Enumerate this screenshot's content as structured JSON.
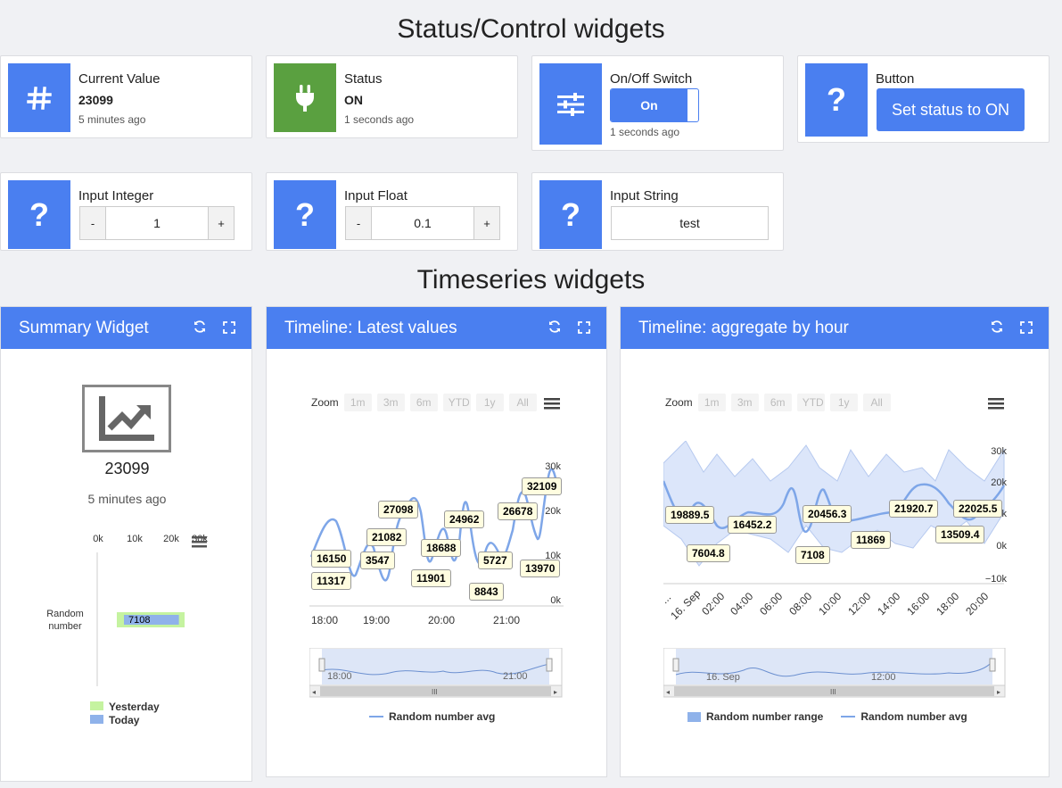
{
  "sections": {
    "status_title": "Status/Control widgets",
    "timeseries_title": "Timeseries widgets"
  },
  "current_value": {
    "label": "Current Value",
    "value": "23099",
    "time": "5 minutes ago",
    "icon": "hash-icon"
  },
  "status": {
    "label": "Status",
    "value": "ON",
    "time": "1 seconds ago",
    "icon": "plug-icon"
  },
  "switch": {
    "label": "On/Off Switch",
    "state": "On",
    "time": "1 seconds ago",
    "icon": "sliders-icon"
  },
  "button": {
    "label": "Button",
    "action": "Set status to ON",
    "icon": "question-icon"
  },
  "input_integer": {
    "label": "Input Integer",
    "minus": "-",
    "value": "1",
    "plus": "+"
  },
  "input_float": {
    "label": "Input Float",
    "minus": "-",
    "value": "0.1",
    "plus": "+"
  },
  "input_string": {
    "label": "Input String",
    "value": "test"
  },
  "summary": {
    "title": "Summary Widget",
    "value": "23099",
    "time": "5 minutes ago",
    "x_ticks": [
      "0k",
      "10k",
      "20k",
      "30k"
    ],
    "row_label_1": "Random",
    "row_label_2": "number",
    "bar_value": "7108",
    "yesterday_frac": 0.247,
    "today_frac": 0.212,
    "legend_yesterday": "Yesterday",
    "legend_today": "Today"
  },
  "timeline_latest": {
    "title": "Timeline: Latest values",
    "zoom_label": "Zoom",
    "zoom_buttons": [
      "1m",
      "3m",
      "6m",
      "YTD",
      "1y",
      "All"
    ],
    "y_ticks": [
      "30k",
      "20k",
      "10k",
      "0k"
    ],
    "x_ticks": [
      "18:00",
      "19:00",
      "20:00",
      "21:00"
    ],
    "nav_ticks": [
      "18:00",
      "21:00"
    ],
    "series_name": "Random number avg",
    "labels": [
      "16150",
      "11317",
      "3547",
      "21082",
      "27098",
      "11901",
      "18688",
      "24962",
      "8843",
      "5727",
      "26678",
      "13970",
      "32109"
    ]
  },
  "timeline_hourly": {
    "title": "Timeline: aggregate by hour",
    "zoom_label": "Zoom",
    "zoom_buttons": [
      "1m",
      "3m",
      "6m",
      "YTD",
      "1y",
      "All"
    ],
    "y_ticks": [
      "30k",
      "20k",
      "10k",
      "0k",
      "−10k"
    ],
    "x_ticks": [
      "...",
      "16. Sep",
      "02:00",
      "04:00",
      "06:00",
      "08:00",
      "10:00",
      "12:00",
      "14:00",
      "16:00",
      "18:00",
      "20:00"
    ],
    "nav_ticks": [
      "16. Sep",
      "12:00"
    ],
    "range_name": "Random number range",
    "series_name": "Random number avg",
    "labels": [
      "19889.5",
      "7604.8",
      "16452.2",
      "7108",
      "20456.3",
      "11869",
      "21920.7",
      "13509.4",
      "22025.5"
    ]
  },
  "colors": {
    "accent": "#4a7ff0",
    "status_green": "#5aa040",
    "yesterday": "#c5f3a0",
    "today": "#8fb2ea"
  }
}
